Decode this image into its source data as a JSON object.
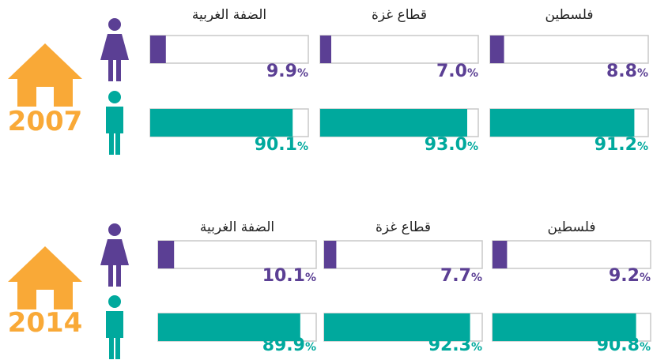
{
  "unit": "%",
  "colors": {
    "year": "#f9a937",
    "female": "#5b3f94",
    "male": "#00a99d"
  },
  "panels": [
    {
      "year": "2007",
      "regions": [
        {
          "name": "الضفة الغربية",
          "female": 9.9,
          "female_label": "9.9",
          "male": 90.1,
          "male_label": "90.1"
        },
        {
          "name": "قطاع غزة",
          "female": 7.0,
          "female_label": "7.0",
          "male": 93.0,
          "male_label": "93.0"
        },
        {
          "name": "فلسطين",
          "female": 8.8,
          "female_label": "8.8",
          "male": 91.2,
          "male_label": "91.2"
        }
      ]
    },
    {
      "year": "2014",
      "regions": [
        {
          "name": "الضفة الغربية",
          "female": 10.1,
          "female_label": "10.1",
          "male": 89.9,
          "male_label": "89.9"
        },
        {
          "name": "قطاع غزة",
          "female": 7.7,
          "female_label": "7.7",
          "male": 92.3,
          "male_label": "92.3"
        },
        {
          "name": "فلسطين",
          "female": 9.2,
          "female_label": "9.2",
          "male": 90.8,
          "male_label": "90.8"
        }
      ]
    }
  ]
}
